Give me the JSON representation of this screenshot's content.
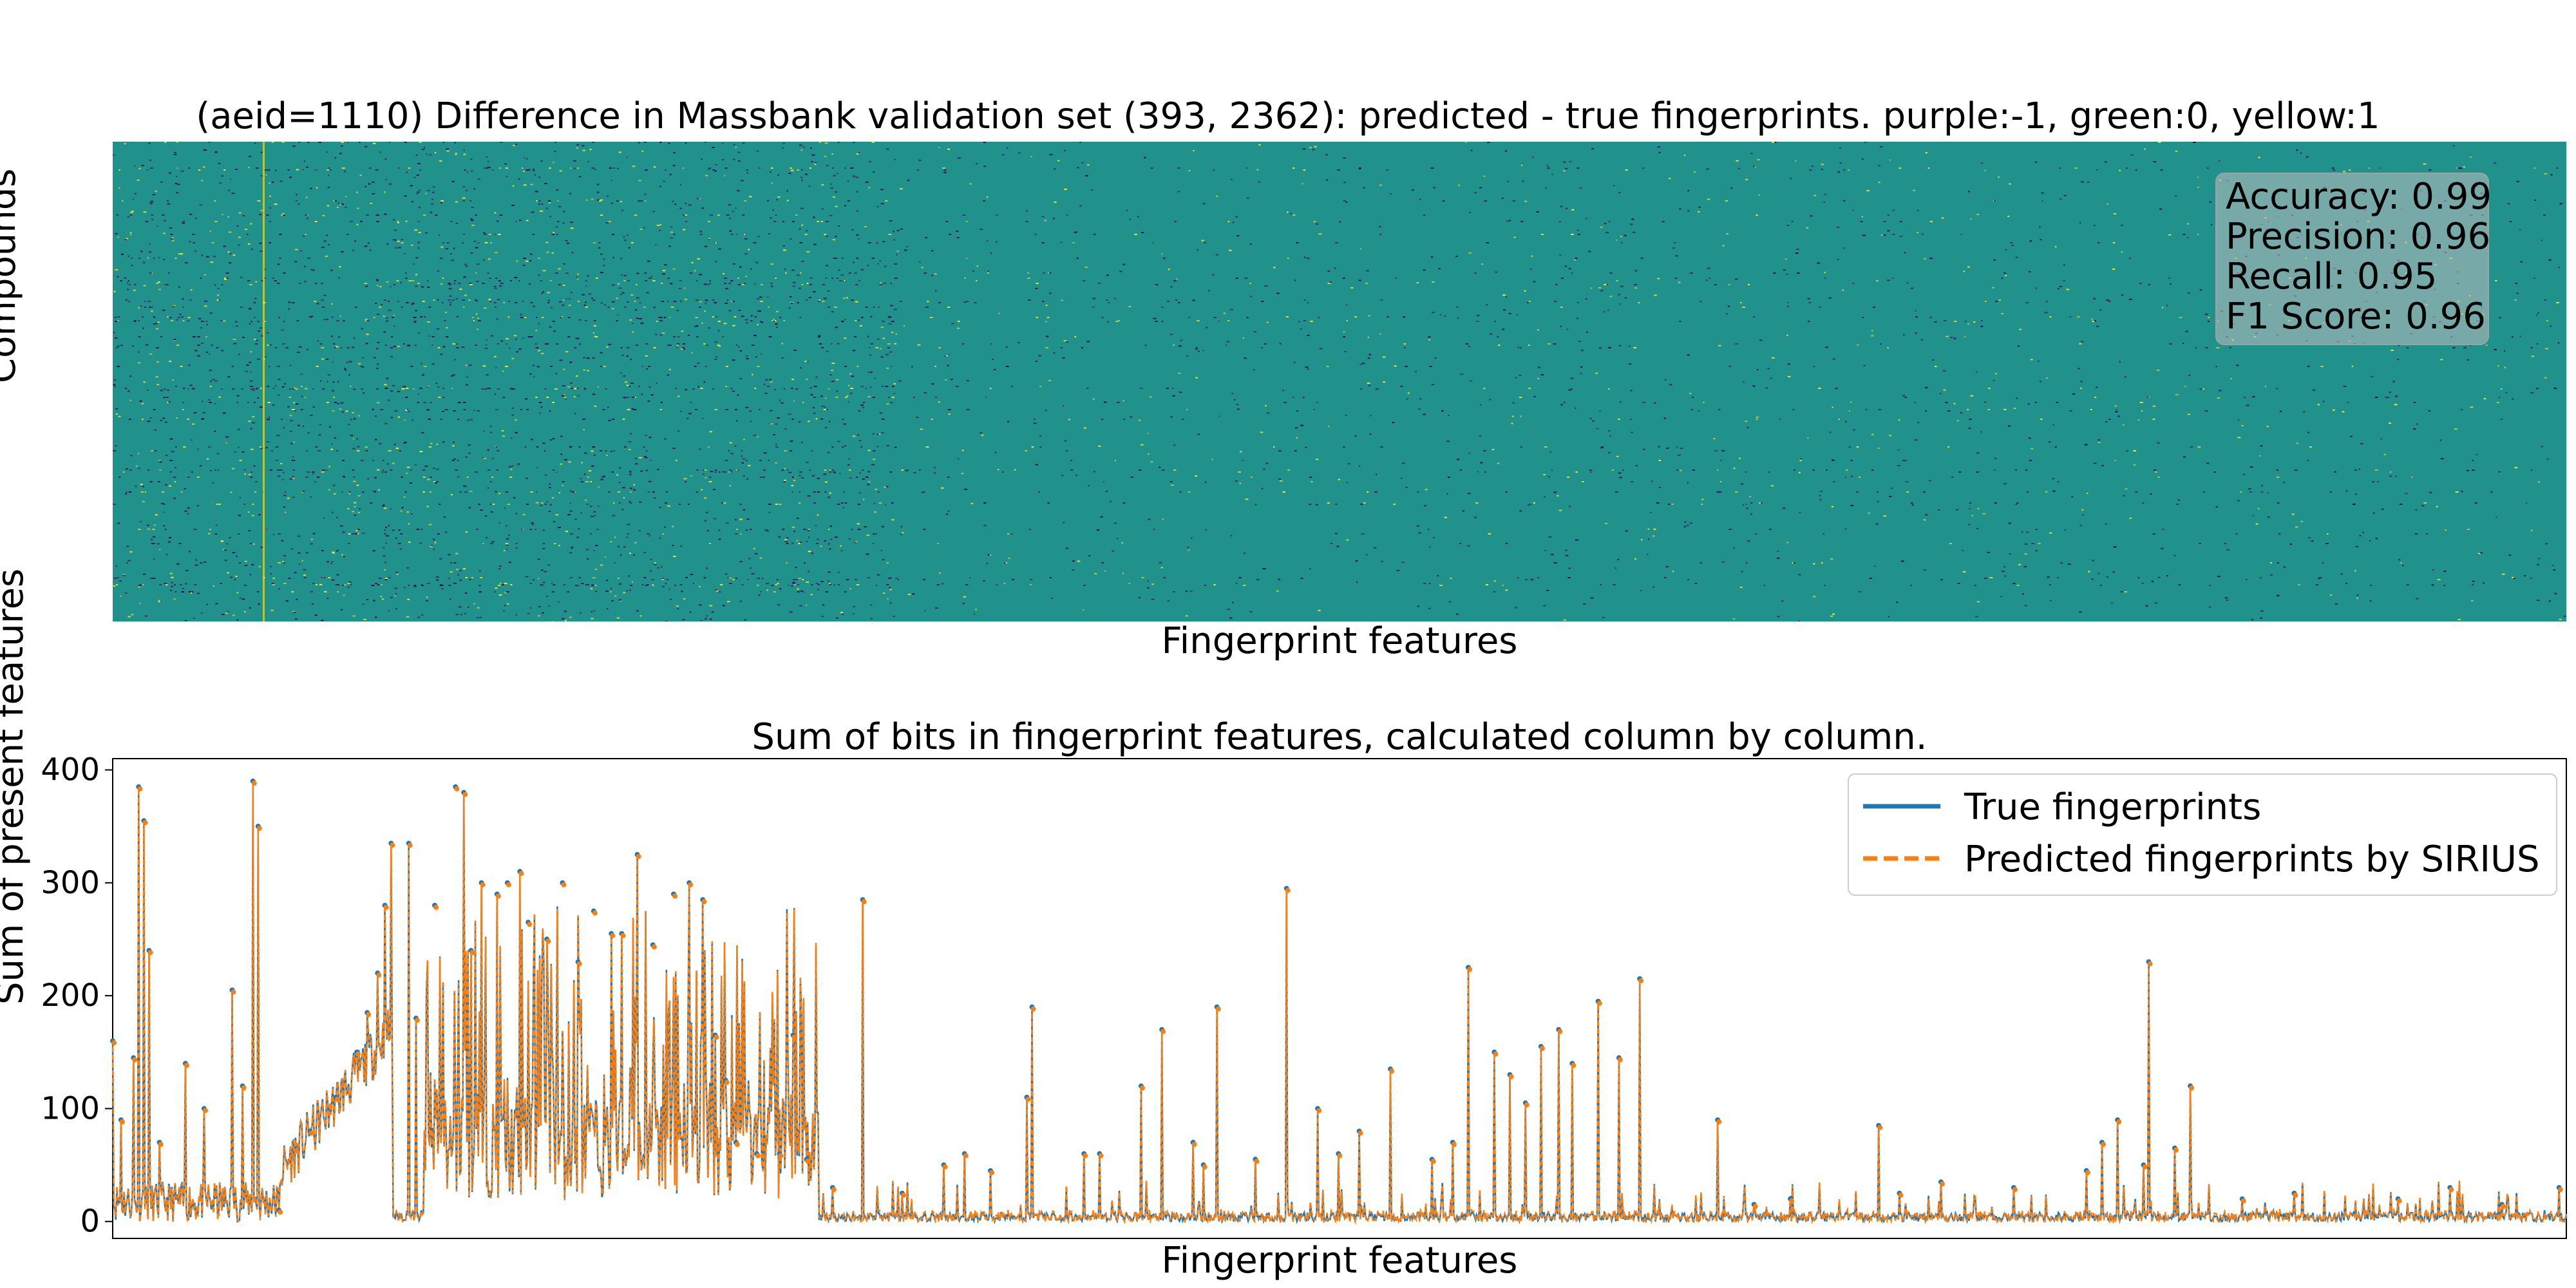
{
  "chart_data": [
    {
      "type": "heatmap",
      "title": "(aeid=1110) Difference in Massbank validation set (393, 2362): predicted - true fingerprints. purple:-1, green:0, yellow:1",
      "xlabel": "Fingerprint features",
      "ylabel": "Compounds",
      "rows": 393,
      "columns": 2362,
      "values_legend": {
        "purple": -1,
        "green": 0,
        "yellow": 1
      },
      "colors": {
        "purple": "#440154",
        "green": "#21918c",
        "yellow": "#fde725"
      },
      "metrics": [
        {
          "label": "Accuracy",
          "value": "0.99"
        },
        {
          "label": "Precision",
          "value": "0.96"
        },
        {
          "label": "Recall",
          "value": "0.95"
        },
        {
          "label": "F1 Score",
          "value": "0.96"
        }
      ]
    },
    {
      "type": "line",
      "title": "Sum of bits in fingerprint features, calculated column by column.",
      "xlabel": "Fingerprint features",
      "ylabel": "Sum of present features",
      "xlim": [
        0,
        2362
      ],
      "ylim": [
        -15,
        410
      ],
      "yticks": [
        0,
        100,
        200,
        300,
        400
      ],
      "grid": false,
      "legend_position": "top-right",
      "series": [
        {
          "name": "True fingerprints",
          "color": "#1f77b4",
          "style": "solid"
        },
        {
          "name": "Predicted fingerprints by SIRIUS",
          "color": "#ff7f0e",
          "style": "dashed"
        }
      ],
      "peaks": [
        {
          "x": 0,
          "y": 160
        },
        {
          "x": 8,
          "y": 90
        },
        {
          "x": 20,
          "y": 145
        },
        {
          "x": 25,
          "y": 385
        },
        {
          "x": 30,
          "y": 355
        },
        {
          "x": 35,
          "y": 240
        },
        {
          "x": 45,
          "y": 70
        },
        {
          "x": 70,
          "y": 140
        },
        {
          "x": 88,
          "y": 100
        },
        {
          "x": 115,
          "y": 205
        },
        {
          "x": 125,
          "y": 120
        },
        {
          "x": 135,
          "y": 390
        },
        {
          "x": 140,
          "y": 350
        },
        {
          "x": 160,
          "y": 10
        },
        {
          "x": 190,
          "y": 80
        },
        {
          "x": 215,
          "y": 110
        },
        {
          "x": 235,
          "y": 150
        },
        {
          "x": 245,
          "y": 185
        },
        {
          "x": 255,
          "y": 220
        },
        {
          "x": 262,
          "y": 280
        },
        {
          "x": 268,
          "y": 335
        },
        {
          "x": 285,
          "y": 335
        },
        {
          "x": 292,
          "y": 180
        },
        {
          "x": 310,
          "y": 280
        },
        {
          "x": 330,
          "y": 385
        },
        {
          "x": 338,
          "y": 380
        },
        {
          "x": 345,
          "y": 240
        },
        {
          "x": 355,
          "y": 300
        },
        {
          "x": 370,
          "y": 290
        },
        {
          "x": 380,
          "y": 300
        },
        {
          "x": 392,
          "y": 310
        },
        {
          "x": 400,
          "y": 265
        },
        {
          "x": 418,
          "y": 250
        },
        {
          "x": 433,
          "y": 300
        },
        {
          "x": 448,
          "y": 230
        },
        {
          "x": 463,
          "y": 275
        },
        {
          "x": 480,
          "y": 255
        },
        {
          "x": 490,
          "y": 255
        },
        {
          "x": 505,
          "y": 325
        },
        {
          "x": 520,
          "y": 245
        },
        {
          "x": 540,
          "y": 290
        },
        {
          "x": 555,
          "y": 300
        },
        {
          "x": 568,
          "y": 285
        },
        {
          "x": 580,
          "y": 165
        },
        {
          "x": 590,
          "y": 125
        },
        {
          "x": 600,
          "y": 70
        },
        {
          "x": 620,
          "y": 60
        },
        {
          "x": 642,
          "y": 60
        },
        {
          "x": 655,
          "y": 165
        },
        {
          "x": 668,
          "y": 55
        },
        {
          "x": 693,
          "y": 30
        },
        {
          "x": 722,
          "y": 285
        },
        {
          "x": 760,
          "y": 25
        },
        {
          "x": 800,
          "y": 50
        },
        {
          "x": 820,
          "y": 60
        },
        {
          "x": 845,
          "y": 45
        },
        {
          "x": 880,
          "y": 110
        },
        {
          "x": 885,
          "y": 190
        },
        {
          "x": 935,
          "y": 60
        },
        {
          "x": 950,
          "y": 60
        },
        {
          "x": 990,
          "y": 120
        },
        {
          "x": 1010,
          "y": 170
        },
        {
          "x": 1040,
          "y": 70
        },
        {
          "x": 1050,
          "y": 50
        },
        {
          "x": 1063,
          "y": 190
        },
        {
          "x": 1100,
          "y": 55
        },
        {
          "x": 1130,
          "y": 295
        },
        {
          "x": 1160,
          "y": 100
        },
        {
          "x": 1180,
          "y": 60
        },
        {
          "x": 1200,
          "y": 80
        },
        {
          "x": 1230,
          "y": 135
        },
        {
          "x": 1270,
          "y": 55
        },
        {
          "x": 1290,
          "y": 70
        },
        {
          "x": 1305,
          "y": 225
        },
        {
          "x": 1330,
          "y": 150
        },
        {
          "x": 1345,
          "y": 130
        },
        {
          "x": 1360,
          "y": 105
        },
        {
          "x": 1375,
          "y": 155
        },
        {
          "x": 1392,
          "y": 170
        },
        {
          "x": 1405,
          "y": 140
        },
        {
          "x": 1430,
          "y": 195
        },
        {
          "x": 1450,
          "y": 145
        },
        {
          "x": 1470,
          "y": 215
        },
        {
          "x": 1545,
          "y": 90
        },
        {
          "x": 1580,
          "y": 15
        },
        {
          "x": 1615,
          "y": 20
        },
        {
          "x": 1700,
          "y": 85
        },
        {
          "x": 1720,
          "y": 25
        },
        {
          "x": 1760,
          "y": 35
        },
        {
          "x": 1830,
          "y": 30
        },
        {
          "x": 1900,
          "y": 45
        },
        {
          "x": 1915,
          "y": 70
        },
        {
          "x": 1930,
          "y": 90
        },
        {
          "x": 1955,
          "y": 50
        },
        {
          "x": 1960,
          "y": 230
        },
        {
          "x": 1985,
          "y": 65
        },
        {
          "x": 2000,
          "y": 120
        },
        {
          "x": 2050,
          "y": 20
        },
        {
          "x": 2100,
          "y": 25
        },
        {
          "x": 2200,
          "y": 20
        },
        {
          "x": 2250,
          "y": 30
        },
        {
          "x": 2300,
          "y": 15
        },
        {
          "x": 2355,
          "y": 30
        }
      ]
    }
  ]
}
